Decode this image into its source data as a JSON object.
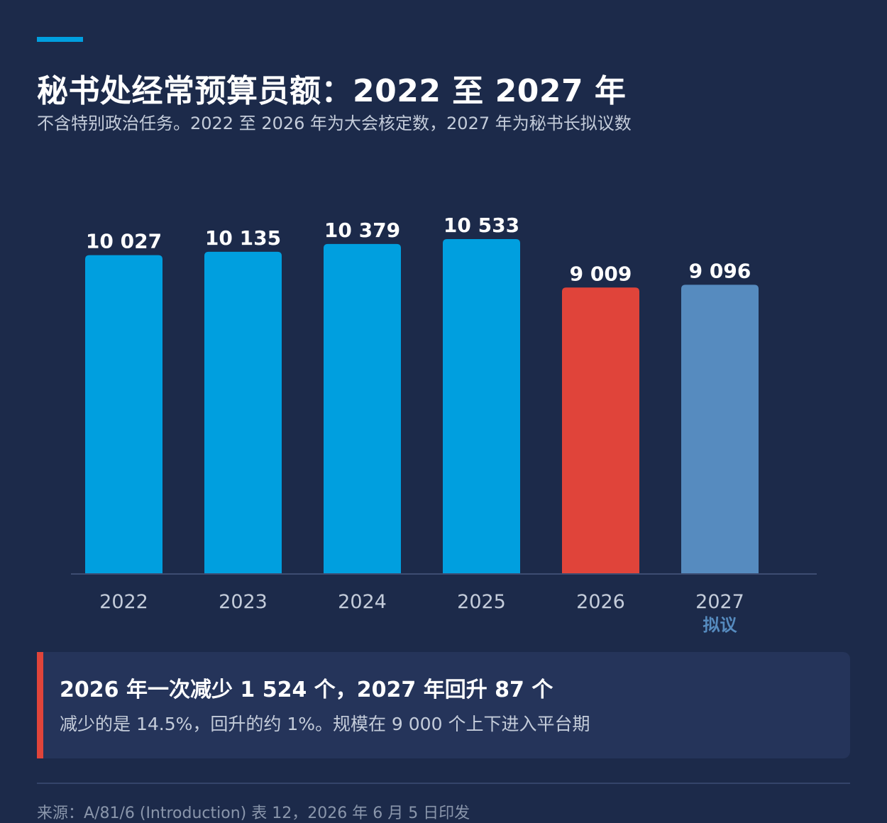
{
  "header": {
    "title": "秘书处经常预算员额：2022 至 2027 年",
    "subtitle": "不含特别政治任务。2022 至 2026 年为大会核定数，2027 年为秘书长拟议数"
  },
  "chart_data": {
    "type": "bar",
    "categories": [
      "2022",
      "2023",
      "2024",
      "2025",
      "2026",
      "2027"
    ],
    "values": [
      10027,
      10135,
      10379,
      10533,
      9009,
      9096
    ],
    "value_labels": [
      "10 027",
      "10 135",
      "10 379",
      "10 533",
      "9 009",
      "9 096"
    ],
    "category_sublabels": [
      "",
      "",
      "",
      "",
      "",
      "拟议"
    ],
    "bar_colors": [
      "#009fdf",
      "#009fdf",
      "#009fdf",
      "#009fdf",
      "#e0443a",
      "#568bbf"
    ],
    "ylim": [
      0,
      10533
    ],
    "grid": false
  },
  "callout": {
    "title": "2026 年一次减少 1 524 个，2027 年回升 87 个",
    "body": "减少的是 14.5%，回升的约 1%。规模在 9 000 个上下进入平台期",
    "accent_color": "#e0443a"
  },
  "source": "来源：A/81/6 (Introduction) 表 12，2026 年 6 月 5 日印发",
  "colors": {
    "background": "#1c2a4a",
    "accent": "#009fdf",
    "sublabel": "#568bbf"
  }
}
